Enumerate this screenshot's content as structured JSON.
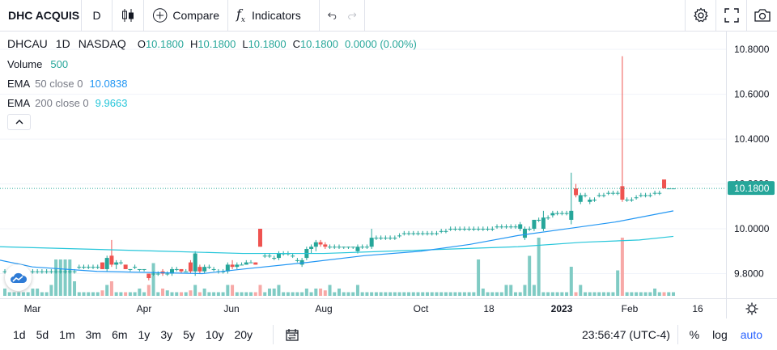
{
  "toolbar": {
    "symbol": "DHC ACQUIS",
    "interval": "D",
    "compare_label": "Compare",
    "indicators_label": "Indicators"
  },
  "legend": {
    "symbol": "DHCAU",
    "interval": "1D",
    "exchange": "NASDAQ",
    "o_key": "O",
    "o_val": "10.1800",
    "h_key": "H",
    "h_val": "10.1800",
    "l_key": "L",
    "l_val": "10.1800",
    "c_key": "C",
    "c_val": "10.1800",
    "change": "0.0000 (0.00%)"
  },
  "studies": {
    "volume": {
      "name": "Volume",
      "value": "500"
    },
    "ema50": {
      "name": "EMA",
      "params": "50 close 0",
      "value": "10.0838"
    },
    "ema200": {
      "name": "EMA",
      "params": "200 close 0",
      "value": "9.9663"
    }
  },
  "price_scale": {
    "ticks": [
      "10.8000",
      "10.6000",
      "10.4000",
      "10.2000",
      "10.0000",
      "9.8000"
    ],
    "last_price": "10.1800"
  },
  "time_scale": {
    "labels": [
      "Mar",
      "Apr",
      "Jun",
      "Aug",
      "Oct",
      "18",
      "2023",
      "Feb",
      "16"
    ]
  },
  "bottom": {
    "ranges": [
      "1d",
      "5d",
      "1m",
      "3m",
      "6m",
      "1y",
      "3y",
      "5y",
      "10y",
      "20y"
    ],
    "clock": "23:56:47 (UTC-4)",
    "percent": "%",
    "log": "log",
    "auto": "auto"
  },
  "colors": {
    "up": "#26a69a",
    "down": "#ef5350",
    "ema50": "#2196f3",
    "ema200": "#26c6da",
    "accent": "#2962ff"
  },
  "chart_data": {
    "type": "candlestick",
    "ylim": [
      9.69,
      10.88
    ],
    "price_ticks": [
      10.8,
      10.6,
      10.4,
      10.2,
      10.0,
      9.8
    ],
    "last_price": 10.18,
    "candles": [
      {
        "o": 9.81,
        "h": 9.82,
        "l": 9.8,
        "c": 9.81,
        "v": 0.2
      },
      {
        "o": 9.81,
        "h": 9.82,
        "l": 9.8,
        "c": 9.81,
        "v": 0.1
      },
      {
        "o": 9.81,
        "h": 9.82,
        "l": 9.8,
        "c": 9.81,
        "v": 0.1
      },
      {
        "o": 9.81,
        "h": 9.82,
        "l": 9.8,
        "c": 9.81,
        "v": 0.1
      },
      {
        "o": 9.81,
        "h": 9.82,
        "l": 9.8,
        "c": 9.81,
        "v": 0.1
      },
      {
        "o": 9.81,
        "h": 9.82,
        "l": 9.8,
        "c": 9.81,
        "v": 0.1
      },
      {
        "o": 9.81,
        "h": 9.82,
        "l": 9.8,
        "c": 9.81,
        "v": 0.2
      },
      {
        "o": 9.81,
        "h": 9.82,
        "l": 9.8,
        "c": 9.81,
        "v": 0.2
      },
      {
        "o": 9.81,
        "h": 9.82,
        "l": 9.8,
        "c": 9.81,
        "v": 0.1
      },
      {
        "o": 9.81,
        "h": 9.82,
        "l": 9.8,
        "c": 9.81,
        "v": 0.1
      },
      {
        "o": 9.81,
        "h": 9.82,
        "l": 9.8,
        "c": 9.81,
        "v": 0.3
      },
      {
        "o": 9.81,
        "h": 9.82,
        "l": 9.8,
        "c": 9.81,
        "v": 1.0
      },
      {
        "o": 9.81,
        "h": 9.82,
        "l": 9.8,
        "c": 9.81,
        "v": 1.0
      },
      {
        "o": 9.81,
        "h": 9.82,
        "l": 9.8,
        "c": 9.81,
        "v": 1.0
      },
      {
        "o": 9.81,
        "h": 9.82,
        "l": 9.8,
        "c": 9.81,
        "v": 1.0
      },
      {
        "o": 9.81,
        "h": 9.82,
        "l": 9.8,
        "c": 9.81,
        "v": 0.4
      },
      {
        "o": 9.83,
        "h": 9.84,
        "l": 9.82,
        "c": 9.83,
        "v": 0.1
      },
      {
        "o": 9.83,
        "h": 9.84,
        "l": 9.82,
        "c": 9.83,
        "v": 0.1
      },
      {
        "o": 9.83,
        "h": 9.84,
        "l": 9.82,
        "c": 9.83,
        "v": 0.1
      },
      {
        "o": 9.83,
        "h": 9.84,
        "l": 9.82,
        "c": 9.83,
        "v": 0.1
      },
      {
        "o": 9.83,
        "h": 9.84,
        "l": 9.82,
        "c": 9.83,
        "v": 0.1
      },
      {
        "o": 9.85,
        "h": 9.85,
        "l": 9.82,
        "c": 9.82,
        "v": 0.15
      },
      {
        "o": 9.82,
        "h": 9.88,
        "l": 9.81,
        "c": 9.87,
        "v": 0.3
      },
      {
        "o": 9.88,
        "h": 9.95,
        "l": 9.83,
        "c": 9.84,
        "v": 0.4
      },
      {
        "o": 9.84,
        "h": 9.86,
        "l": 9.82,
        "c": 9.85,
        "v": 0.1
      },
      {
        "o": 9.85,
        "h": 9.86,
        "l": 9.84,
        "c": 9.85,
        "v": 0.1
      },
      {
        "o": 9.84,
        "h": 9.84,
        "l": 9.82,
        "c": 9.82,
        "v": 0.1
      },
      {
        "o": 9.82,
        "h": 9.82,
        "l": 9.81,
        "c": 9.82,
        "v": 0.1
      },
      {
        "o": 9.83,
        "h": 9.84,
        "l": 9.82,
        "c": 9.83,
        "v": 0.1
      },
      {
        "o": 9.82,
        "h": 9.82,
        "l": 9.81,
        "c": 9.82,
        "v": 0.2
      },
      {
        "o": 9.82,
        "h": 9.82,
        "l": 9.81,
        "c": 9.82,
        "v": 0.1
      },
      {
        "o": 9.8,
        "h": 9.8,
        "l": 9.77,
        "c": 9.78,
        "v": 0.3
      },
      {
        "o": 9.8,
        "h": 9.81,
        "l": 9.79,
        "c": 9.8,
        "v": 0.9
      },
      {
        "o": 9.8,
        "h": 9.81,
        "l": 9.79,
        "c": 9.8,
        "v": 0.1
      },
      {
        "o": 9.81,
        "h": 9.82,
        "l": 9.79,
        "c": 9.8,
        "v": 0.2
      },
      {
        "o": 9.8,
        "h": 9.81,
        "l": 9.79,
        "c": 9.8,
        "v": 0.15
      },
      {
        "o": 9.8,
        "h": 9.83,
        "l": 9.79,
        "c": 9.82,
        "v": 0.1
      },
      {
        "o": 9.82,
        "h": 9.83,
        "l": 9.81,
        "c": 9.82,
        "v": 0.1
      },
      {
        "o": 9.82,
        "h": 9.82,
        "l": 9.8,
        "c": 9.81,
        "v": 0.1
      },
      {
        "o": 9.81,
        "h": 9.82,
        "l": 9.81,
        "c": 9.81,
        "v": 0.1
      },
      {
        "o": 9.85,
        "h": 9.86,
        "l": 9.8,
        "c": 9.81,
        "v": 0.15
      },
      {
        "o": 9.81,
        "h": 9.9,
        "l": 9.79,
        "c": 9.89,
        "v": 0.3
      },
      {
        "o": 9.83,
        "h": 9.84,
        "l": 9.8,
        "c": 9.81,
        "v": 0.1
      },
      {
        "o": 9.81,
        "h": 9.84,
        "l": 9.8,
        "c": 9.83,
        "v": 0.2
      },
      {
        "o": 9.83,
        "h": 9.84,
        "l": 9.82,
        "c": 9.83,
        "v": 0.1
      },
      {
        "o": 9.82,
        "h": 9.83,
        "l": 9.81,
        "c": 9.82,
        "v": 0.1
      },
      {
        "o": 9.81,
        "h": 9.82,
        "l": 9.8,
        "c": 9.81,
        "v": 0.1
      },
      {
        "o": 9.81,
        "h": 9.82,
        "l": 9.8,
        "c": 9.81,
        "v": 0.1
      },
      {
        "o": 9.81,
        "h": 9.85,
        "l": 9.8,
        "c": 9.84,
        "v": 0.3
      },
      {
        "o": 9.84,
        "h": 9.86,
        "l": 9.82,
        "c": 9.83,
        "v": 0.3
      },
      {
        "o": 9.83,
        "h": 9.85,
        "l": 9.82,
        "c": 9.84,
        "v": 0.1
      },
      {
        "o": 9.84,
        "h": 9.85,
        "l": 9.84,
        "c": 9.84,
        "v": 0.1
      },
      {
        "o": 9.84,
        "h": 9.86,
        "l": 9.84,
        "c": 9.85,
        "v": 0.1
      },
      {
        "o": 9.85,
        "h": 9.86,
        "l": 9.85,
        "c": 9.85,
        "v": 0.1
      },
      {
        "o": 9.85,
        "h": 9.85,
        "l": 9.84,
        "c": 9.84,
        "v": 0.1
      },
      {
        "o": 10.0,
        "h": 10.0,
        "l": 9.92,
        "c": 9.92,
        "v": 0.3
      },
      {
        "o": 9.88,
        "h": 9.89,
        "l": 9.87,
        "c": 9.88,
        "v": 0.1
      },
      {
        "o": 9.88,
        "h": 9.89,
        "l": 9.87,
        "c": 9.88,
        "v": 0.2
      },
      {
        "o": 9.87,
        "h": 9.88,
        "l": 9.86,
        "c": 9.87,
        "v": 0.2
      },
      {
        "o": 9.87,
        "h": 9.9,
        "l": 9.86,
        "c": 9.89,
        "v": 0.3
      },
      {
        "o": 9.89,
        "h": 9.9,
        "l": 9.88,
        "c": 9.89,
        "v": 0.1
      },
      {
        "o": 9.89,
        "h": 9.9,
        "l": 9.88,
        "c": 9.89,
        "v": 0.1
      },
      {
        "o": 9.88,
        "h": 9.89,
        "l": 9.87,
        "c": 9.88,
        "v": 0.1
      },
      {
        "o": 9.86,
        "h": 9.87,
        "l": 9.85,
        "c": 9.86,
        "v": 0.1
      },
      {
        "o": 9.84,
        "h": 9.87,
        "l": 9.83,
        "c": 9.86,
        "v": 0.1
      },
      {
        "o": 9.87,
        "h": 9.92,
        "l": 9.86,
        "c": 9.91,
        "v": 0.2
      },
      {
        "o": 9.91,
        "h": 9.93,
        "l": 9.89,
        "c": 9.92,
        "v": 0.1
      },
      {
        "o": 9.92,
        "h": 9.95,
        "l": 9.9,
        "c": 9.94,
        "v": 0.2
      },
      {
        "o": 9.94,
        "h": 9.95,
        "l": 9.92,
        "c": 9.93,
        "v": 0.2
      },
      {
        "o": 9.93,
        "h": 9.94,
        "l": 9.91,
        "c": 9.92,
        "v": 0.15
      },
      {
        "o": 9.92,
        "h": 9.93,
        "l": 9.91,
        "c": 9.92,
        "v": 0.3
      },
      {
        "o": 9.92,
        "h": 9.93,
        "l": 9.91,
        "c": 9.92,
        "v": 0.1
      },
      {
        "o": 9.92,
        "h": 9.93,
        "l": 9.91,
        "c": 9.92,
        "v": 0.2
      },
      {
        "o": 9.92,
        "h": 9.92,
        "l": 9.91,
        "c": 9.92,
        "v": 0.1
      },
      {
        "o": 9.92,
        "h": 9.92,
        "l": 9.91,
        "c": 9.92,
        "v": 0.1
      },
      {
        "o": 9.92,
        "h": 9.92,
        "l": 9.91,
        "c": 9.92,
        "v": 0.1
      },
      {
        "o": 9.9,
        "h": 9.93,
        "l": 9.89,
        "c": 9.92,
        "v": 0.3
      },
      {
        "o": 9.92,
        "h": 9.93,
        "l": 9.91,
        "c": 9.92,
        "v": 0.1
      },
      {
        "o": 9.92,
        "h": 9.93,
        "l": 9.91,
        "c": 9.92,
        "v": 0.1
      },
      {
        "o": 9.92,
        "h": 10.0,
        "l": 9.91,
        "c": 9.96,
        "v": 0.1
      },
      {
        "o": 9.96,
        "h": 9.97,
        "l": 9.95,
        "c": 9.96,
        "v": 0.1
      },
      {
        "o": 9.96,
        "h": 9.97,
        "l": 9.95,
        "c": 9.96,
        "v": 0.1
      },
      {
        "o": 9.96,
        "h": 9.97,
        "l": 9.95,
        "c": 9.96,
        "v": 0.1
      },
      {
        "o": 9.96,
        "h": 9.97,
        "l": 9.95,
        "c": 9.96,
        "v": 0.1
      },
      {
        "o": 9.96,
        "h": 9.97,
        "l": 9.95,
        "c": 9.96,
        "v": 0.1
      },
      {
        "o": 9.97,
        "h": 9.98,
        "l": 9.96,
        "c": 9.97,
        "v": 0.1
      },
      {
        "o": 9.98,
        "h": 9.99,
        "l": 9.97,
        "c": 9.98,
        "v": 0.1
      },
      {
        "o": 9.98,
        "h": 9.99,
        "l": 9.97,
        "c": 9.98,
        "v": 0.1
      },
      {
        "o": 9.98,
        "h": 9.99,
        "l": 9.97,
        "c": 9.98,
        "v": 0.1
      },
      {
        "o": 9.98,
        "h": 9.99,
        "l": 9.97,
        "c": 9.98,
        "v": 0.1
      },
      {
        "o": 9.98,
        "h": 9.99,
        "l": 9.97,
        "c": 9.98,
        "v": 0.1
      },
      {
        "o": 9.98,
        "h": 9.99,
        "l": 9.97,
        "c": 9.98,
        "v": 0.1
      },
      {
        "o": 9.98,
        "h": 9.99,
        "l": 9.97,
        "c": 9.98,
        "v": 0.1
      },
      {
        "o": 9.98,
        "h": 9.99,
        "l": 9.97,
        "c": 9.98,
        "v": 0.1
      },
      {
        "o": 9.99,
        "h": 10.0,
        "l": 9.98,
        "c": 9.99,
        "v": 0.1
      },
      {
        "o": 9.99,
        "h": 10.0,
        "l": 9.98,
        "c": 9.99,
        "v": 0.1
      },
      {
        "o": 10.0,
        "h": 10.01,
        "l": 9.99,
        "c": 10.0,
        "v": 0.1
      },
      {
        "o": 10.0,
        "h": 10.01,
        "l": 9.99,
        "c": 10.0,
        "v": 0.1
      },
      {
        "o": 10.0,
        "h": 10.01,
        "l": 9.99,
        "c": 10.0,
        "v": 0.1
      },
      {
        "o": 10.0,
        "h": 10.01,
        "l": 9.99,
        "c": 10.0,
        "v": 0.1
      },
      {
        "o": 10.0,
        "h": 10.01,
        "l": 9.99,
        "c": 10.0,
        "v": 0.1
      },
      {
        "o": 10.0,
        "h": 10.01,
        "l": 9.99,
        "c": 10.0,
        "v": 0.1
      },
      {
        "o": 10.0,
        "h": 10.01,
        "l": 9.99,
        "c": 10.0,
        "v": 1.0
      },
      {
        "o": 10.0,
        "h": 10.01,
        "l": 9.99,
        "c": 10.0,
        "v": 0.2
      },
      {
        "o": 10.0,
        "h": 10.01,
        "l": 9.99,
        "c": 10.0,
        "v": 0.1
      },
      {
        "o": 10.0,
        "h": 10.01,
        "l": 9.99,
        "c": 10.0,
        "v": 0.1
      },
      {
        "o": 10.01,
        "h": 10.02,
        "l": 10.0,
        "c": 10.01,
        "v": 0.1
      },
      {
        "o": 10.01,
        "h": 10.02,
        "l": 10.0,
        "c": 10.01,
        "v": 0.1
      },
      {
        "o": 10.01,
        "h": 10.02,
        "l": 10.0,
        "c": 10.01,
        "v": 0.3
      },
      {
        "o": 10.01,
        "h": 10.02,
        "l": 10.0,
        "c": 10.01,
        "v": 0.3
      },
      {
        "o": 10.01,
        "h": 10.02,
        "l": 10.0,
        "c": 10.01,
        "v": 0.1
      },
      {
        "o": 10.0,
        "h": 10.03,
        "l": 9.99,
        "c": 10.02,
        "v": 0.1
      },
      {
        "o": 9.96,
        "h": 10.01,
        "l": 9.95,
        "c": 10.0,
        "v": 0.3
      },
      {
        "o": 10.0,
        "h": 10.01,
        "l": 9.99,
        "c": 10.0,
        "v": 1.1
      },
      {
        "o": 10.0,
        "h": 10.04,
        "l": 9.99,
        "c": 10.04,
        "v": 0.3
      },
      {
        "o": 10.04,
        "h": 10.05,
        "l": 10.03,
        "c": 10.04,
        "v": 1.6
      },
      {
        "o": 10.0,
        "h": 10.08,
        "l": 9.99,
        "c": 10.05,
        "v": 0.1
      },
      {
        "o": 10.05,
        "h": 10.06,
        "l": 10.04,
        "c": 10.05,
        "v": 0.1
      },
      {
        "o": 10.06,
        "h": 10.08,
        "l": 10.05,
        "c": 10.07,
        "v": 0.1
      },
      {
        "o": 10.07,
        "h": 10.08,
        "l": 10.06,
        "c": 10.07,
        "v": 0.1
      },
      {
        "o": 10.07,
        "h": 10.08,
        "l": 10.06,
        "c": 10.07,
        "v": 0.1
      },
      {
        "o": 10.07,
        "h": 10.08,
        "l": 10.06,
        "c": 10.07,
        "v": 0.1
      },
      {
        "o": 10.04,
        "h": 10.25,
        "l": 10.02,
        "c": 10.08,
        "v": 0.8
      },
      {
        "o": 10.18,
        "h": 10.2,
        "l": 10.14,
        "c": 10.15,
        "v": 0.1
      },
      {
        "o": 10.12,
        "h": 10.16,
        "l": 10.11,
        "c": 10.15,
        "v": 0.3
      },
      {
        "o": 10.15,
        "h": 10.16,
        "l": 10.14,
        "c": 10.15,
        "v": 0.1
      },
      {
        "o": 10.12,
        "h": 10.14,
        "l": 10.11,
        "c": 10.13,
        "v": 0.1
      },
      {
        "o": 10.13,
        "h": 10.14,
        "l": 10.12,
        "c": 10.13,
        "v": 0.1
      },
      {
        "o": 10.15,
        "h": 10.16,
        "l": 10.14,
        "c": 10.15,
        "v": 0.1
      },
      {
        "o": 10.15,
        "h": 10.16,
        "l": 10.14,
        "c": 10.15,
        "v": 0.1
      },
      {
        "o": 10.16,
        "h": 10.17,
        "l": 10.15,
        "c": 10.16,
        "v": 0.1
      },
      {
        "o": 10.16,
        "h": 10.17,
        "l": 10.15,
        "c": 10.16,
        "v": 0.1
      },
      {
        "o": 10.16,
        "h": 10.17,
        "l": 10.15,
        "c": 10.16,
        "v": 0.7
      },
      {
        "o": 10.19,
        "h": 10.77,
        "l": 10.12,
        "c": 10.13,
        "v": 1.6
      },
      {
        "o": 10.13,
        "h": 10.14,
        "l": 10.12,
        "c": 10.13,
        "v": 0.1
      },
      {
        "o": 10.13,
        "h": 10.14,
        "l": 10.12,
        "c": 10.13,
        "v": 0.1
      },
      {
        "o": 10.14,
        "h": 10.15,
        "l": 10.13,
        "c": 10.14,
        "v": 0.1
      },
      {
        "o": 10.15,
        "h": 10.16,
        "l": 10.14,
        "c": 10.15,
        "v": 0.1
      },
      {
        "o": 10.15,
        "h": 10.16,
        "l": 10.14,
        "c": 10.15,
        "v": 0.1
      },
      {
        "o": 10.15,
        "h": 10.16,
        "l": 10.14,
        "c": 10.15,
        "v": 0.1
      },
      {
        "o": 10.16,
        "h": 10.17,
        "l": 10.15,
        "c": 10.16,
        "v": 0.2
      },
      {
        "o": 10.16,
        "h": 10.17,
        "l": 10.15,
        "c": 10.16,
        "v": 0.1
      },
      {
        "o": 10.22,
        "h": 10.22,
        "l": 10.18,
        "c": 10.18,
        "v": 0.1
      },
      {
        "o": 10.18,
        "h": 10.18,
        "l": 10.18,
        "c": 10.18,
        "v": 0.1
      },
      {
        "o": 10.18,
        "h": 10.18,
        "l": 10.18,
        "c": 10.18,
        "v": 0.1
      }
    ],
    "ema50": [
      [
        0,
        9.86
      ],
      [
        40,
        9.83
      ],
      [
        120,
        9.81
      ],
      [
        250,
        9.8
      ],
      [
        300,
        9.82
      ],
      [
        380,
        9.85
      ],
      [
        450,
        9.88
      ],
      [
        520,
        9.9
      ],
      [
        580,
        9.93
      ],
      [
        640,
        9.97
      ],
      [
        700,
        10.0
      ],
      [
        760,
        10.03
      ],
      [
        832,
        10.08
      ]
    ],
    "ema200": [
      [
        0,
        9.92
      ],
      [
        100,
        9.91
      ],
      [
        200,
        9.9
      ],
      [
        300,
        9.89
      ],
      [
        400,
        9.89
      ],
      [
        480,
        9.9
      ],
      [
        560,
        9.91
      ],
      [
        640,
        9.92
      ],
      [
        720,
        9.94
      ],
      [
        790,
        9.95
      ],
      [
        832,
        9.966
      ]
    ]
  }
}
